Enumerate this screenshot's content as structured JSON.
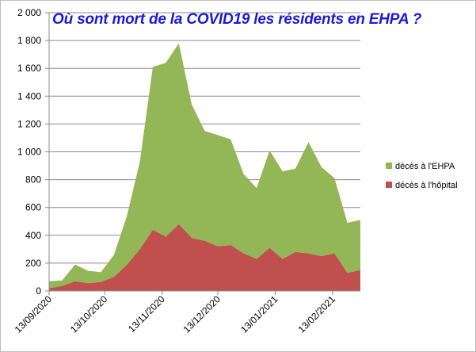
{
  "colors": {
    "ehpa": "#93b657",
    "hopital": "#c0504d",
    "title": "#1a1adc"
  },
  "chart_data": {
    "type": "area",
    "stacked": true,
    "title": "Où sont mort de la COVID19 les résidents en EHPA ?",
    "xlabel": "",
    "ylabel": "",
    "ylim": [
      0,
      2000
    ],
    "yticks": [
      0,
      200,
      400,
      600,
      800,
      1000,
      1200,
      1400,
      1600,
      1800,
      2000
    ],
    "ytick_labels": [
      "0",
      "200",
      "400",
      "600",
      "800",
      "1 000",
      "1 200",
      "1 400",
      "1 600",
      "1 800",
      "2 000"
    ],
    "xtick_labels": [
      "13/09/2020",
      "13/10/2020",
      "13/11/2020",
      "13/12/2020",
      "13/01/2021",
      "13/02/2021"
    ],
    "xtick_positions": [
      0,
      30,
      61,
      91,
      122,
      153
    ],
    "x_first_date": "13/09/2020",
    "x_days_per_point": 7,
    "x_span_days": 168,
    "grid": true,
    "legend_position": "right",
    "series": [
      {
        "name": "décès à l'hôpital",
        "color": "#c0504d",
        "values": [
          20,
          35,
          70,
          55,
          65,
          100,
          190,
          300,
          440,
          390,
          480,
          380,
          360,
          320,
          330,
          270,
          230,
          310,
          230,
          280,
          270,
          250,
          270,
          130,
          150
        ]
      },
      {
        "name": "décès à l'EHPA",
        "color": "#93b657",
        "values": [
          50,
          40,
          120,
          90,
          70,
          160,
          350,
          630,
          1170,
          1250,
          1300,
          960,
          790,
          800,
          760,
          570,
          510,
          700,
          630,
          600,
          800,
          640,
          540,
          360,
          360
        ]
      }
    ],
    "legend": [
      "décès à l'EHPA",
      "décès à l'hôpital"
    ]
  }
}
